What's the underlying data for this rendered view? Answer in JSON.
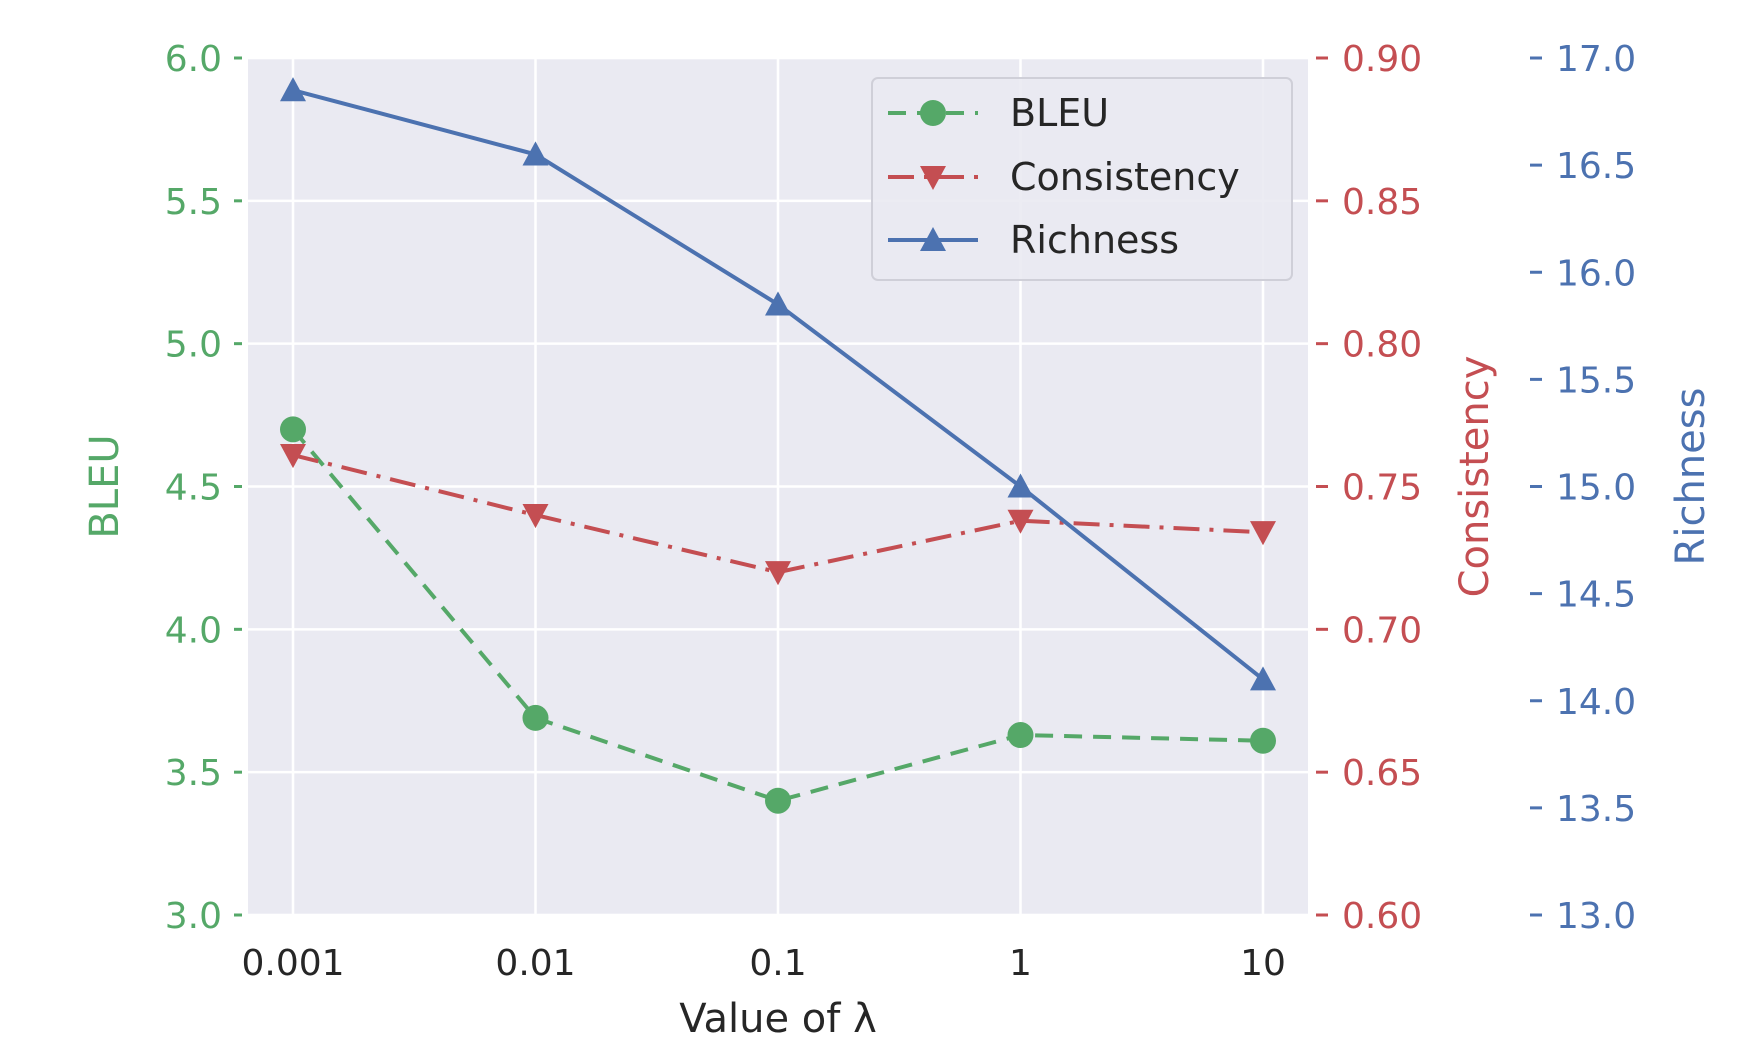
{
  "chart_data": {
    "type": "line",
    "x_label": "Value of  λ",
    "categories": [
      "0.001",
      "0.01",
      "0.1",
      "1",
      "10"
    ],
    "grid": true,
    "legend_placement": "upper-right",
    "axes": {
      "bleu": {
        "label": "BLEU",
        "side": "left",
        "color": "#55a868",
        "ylim": [
          3.0,
          6.0
        ],
        "ticks": [
          3.0,
          3.5,
          4.0,
          4.5,
          5.0,
          5.5,
          6.0
        ],
        "tick_labels": [
          "3.0",
          "3.5",
          "4.0",
          "4.5",
          "5.0",
          "5.5",
          "6.0"
        ]
      },
      "consistency": {
        "label": "Consistency",
        "side": "right",
        "color": "#c44e52",
        "ylim": [
          0.6,
          0.9
        ],
        "ticks": [
          0.6,
          0.65,
          0.7,
          0.75,
          0.8,
          0.85,
          0.9
        ],
        "tick_labels": [
          "0.60",
          "0.65",
          "0.70",
          "0.75",
          "0.80",
          "0.85",
          "0.90"
        ]
      },
      "richness": {
        "label": "Richness",
        "side": "right-outer",
        "color": "#4c72b0",
        "ylim": [
          13.0,
          17.0
        ],
        "ticks": [
          13.0,
          13.5,
          14.0,
          14.5,
          15.0,
          15.5,
          16.0,
          16.5,
          17.0
        ],
        "tick_labels": [
          "13.0",
          "13.5",
          "14.0",
          "14.5",
          "15.0",
          "15.5",
          "16.0",
          "16.5",
          "17.0"
        ]
      }
    },
    "series": [
      {
        "name": "BLEU",
        "axis": "bleu",
        "color": "#55a868",
        "linestyle": "dashed",
        "marker": "circle",
        "values": [
          4.7,
          3.69,
          3.4,
          3.63,
          3.61
        ]
      },
      {
        "name": "Consistency",
        "axis": "consistency",
        "color": "#c44e52",
        "linestyle": "dashdot",
        "marker": "triangle-down",
        "values": [
          0.761,
          0.74,
          0.72,
          0.738,
          0.734
        ]
      },
      {
        "name": "Richness",
        "axis": "richness",
        "color": "#4c72b0",
        "linestyle": "solid",
        "marker": "triangle-up",
        "values": [
          16.85,
          16.55,
          15.85,
          15.0,
          14.1
        ]
      }
    ]
  }
}
